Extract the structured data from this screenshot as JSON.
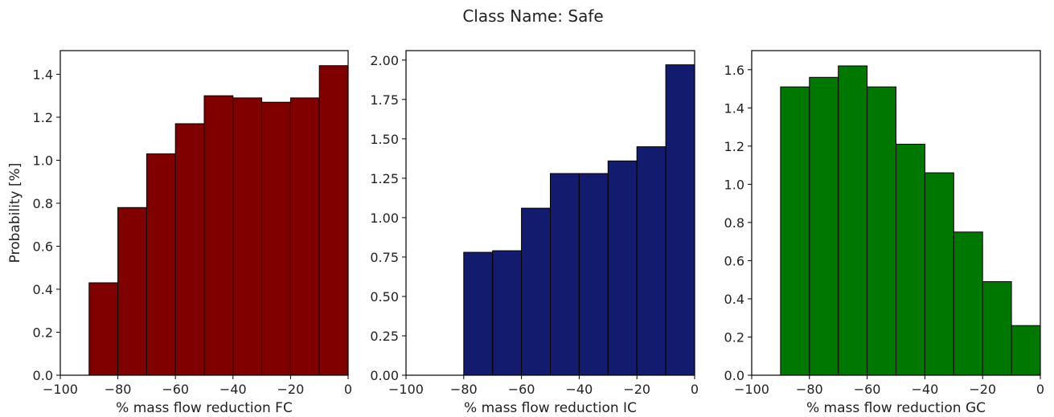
{
  "figure": {
    "suptitle": "Class Name: Safe"
  },
  "chart_data": [
    {
      "type": "bar",
      "title": "",
      "xlabel": "% mass flow reduction FC",
      "ylabel": "Probability [%]",
      "xlim": [
        -100,
        0
      ],
      "ylim": [
        0,
        1.51
      ],
      "xticks": [
        -100,
        -80,
        -60,
        -40,
        -20,
        0
      ],
      "xtick_labels": [
        "−100",
        "−80",
        "−60",
        "−40",
        "−20",
        "0"
      ],
      "yticks": [
        0,
        0.2,
        0.4,
        0.6,
        0.8,
        1.0,
        1.2,
        1.4
      ],
      "ytick_labels": [
        "0.0",
        "0.2",
        "0.4",
        "0.6",
        "0.8",
        "1.0",
        "1.2",
        "1.4"
      ],
      "color": "#800000",
      "bin_edges": [
        -90,
        -80,
        -70,
        -60,
        -50,
        -40,
        -30,
        -20,
        -10,
        0
      ],
      "values": [
        0.43,
        0.78,
        1.03,
        1.17,
        1.3,
        1.29,
        1.27,
        1.29,
        1.44
      ]
    },
    {
      "type": "bar",
      "title": "",
      "xlabel": "% mass flow reduction IC",
      "ylabel": "",
      "xlim": [
        -100,
        0
      ],
      "ylim": [
        0,
        2.06
      ],
      "xticks": [
        -100,
        -80,
        -60,
        -40,
        -20,
        0
      ],
      "xtick_labels": [
        "−100",
        "−80",
        "−60",
        "−40",
        "−20",
        "0"
      ],
      "yticks": [
        0,
        0.25,
        0.5,
        0.75,
        1.0,
        1.25,
        1.5,
        1.75,
        2.0
      ],
      "ytick_labels": [
        "0.00",
        "0.25",
        "0.50",
        "0.75",
        "1.00",
        "1.25",
        "1.50",
        "1.75",
        "2.00"
      ],
      "color": "#121b6e",
      "bin_edges": [
        -80,
        -70,
        -60,
        -50,
        -40,
        -30,
        -20,
        -10,
        0
      ],
      "values": [
        0.78,
        0.79,
        1.06,
        1.28,
        1.28,
        1.36,
        1.45,
        1.97
      ]
    },
    {
      "type": "bar",
      "title": "",
      "xlabel": "% mass flow reduction GC",
      "ylabel": "",
      "xlim": [
        -100,
        0
      ],
      "ylim": [
        0,
        1.7
      ],
      "xticks": [
        -100,
        -80,
        -60,
        -40,
        -20,
        0
      ],
      "xtick_labels": [
        "−100",
        "−80",
        "−60",
        "−40",
        "−20",
        "0"
      ],
      "yticks": [
        0,
        0.2,
        0.4,
        0.6,
        0.8,
        1.0,
        1.2,
        1.4,
        1.6
      ],
      "ytick_labels": [
        "0.0",
        "0.2",
        "0.4",
        "0.6",
        "0.8",
        "1.0",
        "1.2",
        "1.4",
        "1.6"
      ],
      "color": "#007800",
      "bin_edges": [
        -90,
        -80,
        -70,
        -60,
        -50,
        -40,
        -30,
        -20,
        -10,
        0
      ],
      "values": [
        1.51,
        1.56,
        1.62,
        1.51,
        1.21,
        1.06,
        0.75,
        0.49,
        0.26
      ]
    }
  ]
}
